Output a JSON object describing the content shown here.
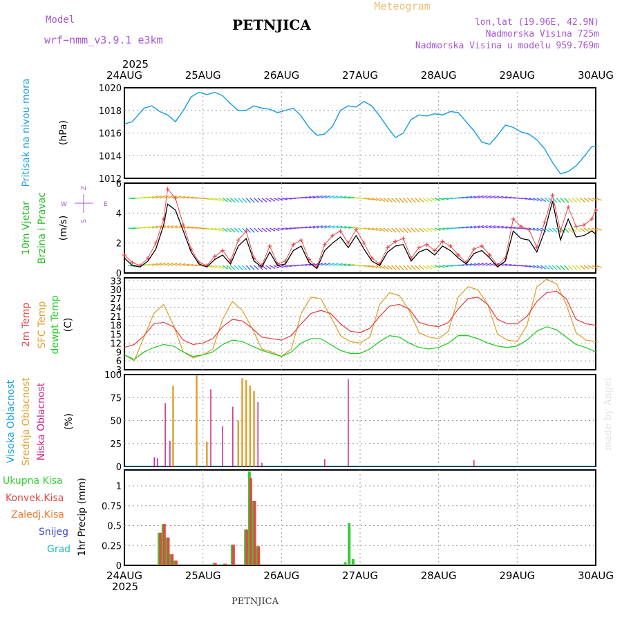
{
  "header": {
    "model_label": "Model",
    "model_name": "wrf−nmm_v3.9.1  e3km",
    "station": "PETNJICA",
    "meteogram": "Meteogram",
    "coords": "lon,lat (19.96E, 42.9N)",
    "altitude": "Nadmorska Visina 725m",
    "model_altitude": "Nadmorska Visina u modelu 959.769m",
    "footer_station": "PETNJICA",
    "credit": "made by Angel"
  },
  "colors": {
    "pressure": "#1ea0e6",
    "wind_label": "#22bb22",
    "temp2m": "#e84646",
    "sfc": "#e0a030",
    "dewpt": "#22cc22",
    "cloud_high": "#1ea0e6",
    "cloud_mid": "#e0a030",
    "cloud_low": "#cc2288",
    "precip_total": "#33cc33",
    "precip_conv": "#e84646",
    "precip_snow": "#4444dd",
    "precip_hail": "#22bbbb",
    "precip_frz": "#f07a30",
    "purple": "#a855d8"
  },
  "chart_data": {
    "type": "line",
    "x_axis": {
      "year": "2025",
      "dates": [
        "24AUG",
        "25AUG",
        "26AUG",
        "27AUG",
        "28AUG",
        "29AUG",
        "30AUG"
      ],
      "range_days": [
        0,
        6
      ]
    },
    "panels": {
      "pressure": {
        "ylabel": "Pritisak na nivou mora",
        "unit": "(hPa)",
        "ylim": [
          1012,
          1020
        ],
        "yticks": [
          "1012",
          "1014",
          "1016",
          "1018",
          "1020"
        ],
        "x": [
          0,
          0.1,
          0.25,
          0.35,
          0.45,
          0.55,
          0.65,
          0.75,
          0.85,
          0.95,
          1.05,
          1.15,
          1.25,
          1.35,
          1.45,
          1.55,
          1.65,
          1.75,
          1.85,
          1.95,
          2.05,
          2.15,
          2.25,
          2.35,
          2.45,
          2.55,
          2.65,
          2.75,
          2.85,
          2.95,
          3.05,
          3.15,
          3.25,
          3.35,
          3.45,
          3.55,
          3.65,
          3.75,
          3.85,
          3.95,
          4.05,
          4.15,
          4.25,
          4.35,
          4.45,
          4.55,
          4.65,
          4.75,
          4.85,
          4.95,
          5.05,
          5.15,
          5.25,
          5.35,
          5.45,
          5.55,
          5.65,
          5.75,
          5.85,
          5.95,
          6.0
        ],
        "values": [
          1016.8,
          1017.0,
          1018.2,
          1018.4,
          1017.9,
          1017.6,
          1017.0,
          1018.0,
          1019.2,
          1019.6,
          1019.4,
          1019.6,
          1019.3,
          1018.6,
          1018.0,
          1018.0,
          1018.4,
          1018.2,
          1018.1,
          1017.8,
          1018.0,
          1018.2,
          1017.5,
          1016.5,
          1015.8,
          1015.9,
          1016.6,
          1018.0,
          1018.4,
          1018.3,
          1018.8,
          1018.4,
          1017.5,
          1016.5,
          1015.6,
          1016.0,
          1017.2,
          1017.6,
          1017.5,
          1017.7,
          1017.6,
          1017.9,
          1017.8,
          1017.0,
          1016.2,
          1015.2,
          1015.0,
          1015.8,
          1016.7,
          1016.5,
          1016.1,
          1015.9,
          1015.4,
          1014.6,
          1013.4,
          1012.4,
          1012.6,
          1013.1,
          1013.9,
          1014.8,
          1014.8
        ]
      },
      "wind": {
        "ylabel1": "10m Vjetar",
        "ylabel2": "Brzina i Pravac",
        "unit": "(m/s)",
        "ylim": [
          0,
          6
        ],
        "yticks": [
          "0",
          "2",
          "4",
          "6"
        ],
        "compass": {
          "n": "Z",
          "s": "S",
          "w": "W",
          "e": "E"
        },
        "barb_levels": [
          5,
          3,
          0.5
        ],
        "x": [
          0,
          0.1,
          0.2,
          0.3,
          0.4,
          0.5,
          0.55,
          0.65,
          0.75,
          0.85,
          0.95,
          1.05,
          1.15,
          1.25,
          1.35,
          1.45,
          1.55,
          1.65,
          1.75,
          1.85,
          1.95,
          2.05,
          2.15,
          2.25,
          2.35,
          2.45,
          2.55,
          2.65,
          2.75,
          2.85,
          2.95,
          3.05,
          3.15,
          3.25,
          3.35,
          3.45,
          3.55,
          3.65,
          3.75,
          3.85,
          3.95,
          4.05,
          4.15,
          4.25,
          4.35,
          4.45,
          4.55,
          4.65,
          4.75,
          4.85,
          4.95,
          5.05,
          5.15,
          5.25,
          5.35,
          5.45,
          5.55,
          5.65,
          5.75,
          5.85,
          5.95,
          6.0
        ],
        "speed": [
          1.0,
          0.5,
          0.4,
          0.8,
          1.6,
          3.2,
          4.6,
          4.2,
          2.8,
          1.4,
          0.6,
          0.4,
          0.9,
          1.2,
          0.6,
          1.8,
          2.3,
          0.8,
          0.4,
          1.4,
          0.5,
          0.6,
          1.5,
          1.8,
          0.7,
          0.3,
          1.5,
          2.0,
          2.4,
          1.7,
          2.5,
          1.6,
          0.8,
          0.5,
          1.4,
          1.8,
          1.9,
          0.8,
          1.4,
          1.6,
          1.2,
          1.8,
          1.5,
          1.0,
          0.6,
          1.3,
          1.5,
          1.0,
          0.4,
          0.8,
          2.8,
          2.3,
          2.2,
          1.4,
          2.8,
          4.8,
          2.2,
          3.6,
          2.4,
          2.5,
          2.8,
          2.6
        ],
        "gust": [
          1.2,
          0.7,
          0.5,
          1.0,
          2.0,
          3.6,
          5.6,
          5.0,
          3.2,
          1.6,
          0.7,
          0.5,
          1.1,
          1.5,
          0.8,
          2.2,
          2.8,
          1.0,
          0.5,
          1.8,
          0.6,
          0.8,
          1.9,
          2.2,
          0.9,
          0.4,
          1.9,
          2.5,
          2.8,
          2.0,
          2.9,
          2.0,
          1.0,
          0.6,
          1.7,
          2.1,
          2.3,
          1.0,
          1.7,
          1.9,
          1.5,
          2.1,
          1.8,
          1.2,
          0.7,
          1.6,
          1.8,
          1.2,
          0.5,
          1.0,
          3.6,
          3.1,
          2.9,
          1.7,
          3.4,
          5.2,
          2.8,
          4.4,
          3.1,
          3.2,
          3.6,
          4.2
        ]
      },
      "temperature": {
        "ylabel1": "2m Temp",
        "ylabel2": "SFC Temp",
        "ylabel3": "dewpt Temp",
        "unit": "(C)",
        "ylim": [
          3,
          34
        ],
        "yticks": [
          "3",
          "6",
          "9",
          "12",
          "15",
          "18",
          "21",
          "24",
          "27",
          "30",
          "33"
        ],
        "x": [
          0,
          0.125,
          0.25,
          0.375,
          0.5,
          0.625,
          0.75,
          0.875,
          1.0,
          1.125,
          1.25,
          1.375,
          1.5,
          1.625,
          1.75,
          1.875,
          2.0,
          2.125,
          2.25,
          2.375,
          2.5,
          2.625,
          2.75,
          2.875,
          3.0,
          3.125,
          3.25,
          3.375,
          3.5,
          3.625,
          3.75,
          3.875,
          4.0,
          4.125,
          4.25,
          4.375,
          4.5,
          4.625,
          4.75,
          4.875,
          5.0,
          5.125,
          5.25,
          5.375,
          5.5,
          5.625,
          5.75,
          5.875,
          6.0
        ],
        "t2m": [
          10.5,
          11.5,
          14.5,
          18.5,
          19.0,
          17.5,
          13.0,
          11.5,
          12.0,
          13.5,
          17.5,
          20.0,
          19.5,
          17.0,
          14.0,
          13.5,
          13.0,
          14.5,
          18.5,
          22.0,
          23.0,
          22.0,
          18.5,
          16.0,
          15.5,
          17.0,
          21.0,
          24.5,
          25.0,
          23.5,
          19.0,
          18.0,
          17.5,
          19.0,
          23.5,
          27.0,
          27.5,
          25.0,
          20.0,
          18.5,
          18.5,
          21.0,
          26.0,
          29.0,
          29.5,
          27.0,
          20.0,
          18.5,
          18.0
        ],
        "sfc": [
          8.0,
          6.0,
          14.0,
          22.0,
          25.0,
          18.0,
          9.0,
          7.0,
          8.0,
          10.0,
          20.0,
          26.0,
          23.0,
          17.0,
          10.0,
          9.0,
          7.5,
          10.0,
          22.0,
          27.5,
          27.0,
          21.0,
          14.5,
          12.5,
          12.0,
          14.0,
          25.0,
          29.0,
          28.0,
          23.0,
          15.5,
          14.0,
          13.5,
          16.0,
          27.5,
          31.0,
          30.0,
          25.0,
          15.0,
          13.0,
          12.5,
          18.0,
          31.0,
          33.5,
          32.0,
          25.0,
          15.5,
          13.0,
          12.5
        ],
        "dewpt": [
          8.0,
          6.5,
          9.0,
          10.5,
          11.5,
          11.0,
          9.0,
          7.5,
          8.0,
          9.0,
          11.5,
          13.0,
          12.5,
          11.0,
          9.5,
          8.5,
          7.5,
          9.0,
          12.0,
          13.5,
          13.5,
          11.5,
          9.5,
          8.5,
          8.5,
          10.0,
          12.5,
          14.5,
          14.0,
          12.0,
          10.5,
          10.0,
          10.5,
          12.0,
          14.5,
          14.5,
          13.5,
          12.0,
          11.0,
          10.5,
          11.0,
          13.0,
          16.0,
          17.5,
          16.5,
          14.0,
          11.5,
          10.5,
          9.0
        ]
      },
      "clouds": {
        "ylabel1": "Visoka Oblacnost",
        "ylabel2": "Srednja Oblacnost",
        "ylabel3": "Niska Oblacnost",
        "unit": "(%)",
        "ylim": [
          0,
          100
        ],
        "yticks": [
          "0",
          "25",
          "50",
          "75",
          "100"
        ],
        "bars": [
          {
            "x": 0.38,
            "kind": "low",
            "v": 10
          },
          {
            "x": 0.42,
            "kind": "low",
            "v": 9
          },
          {
            "x": 0.52,
            "kind": "low",
            "v": 69
          },
          {
            "x": 0.58,
            "kind": "low",
            "v": 28
          },
          {
            "x": 0.62,
            "kind": "mid",
            "v": 88
          },
          {
            "x": 0.92,
            "kind": "mid",
            "v": 99
          },
          {
            "x": 1.05,
            "kind": "mid",
            "v": 27
          },
          {
            "x": 1.1,
            "kind": "low",
            "v": 84
          },
          {
            "x": 1.25,
            "kind": "low",
            "v": 44
          },
          {
            "x": 1.38,
            "kind": "low",
            "v": 65
          },
          {
            "x": 1.45,
            "kind": "mid",
            "v": 50
          },
          {
            "x": 1.5,
            "kind": "mid",
            "v": 96
          },
          {
            "x": 1.55,
            "kind": "mid",
            "v": 94
          },
          {
            "x": 1.6,
            "kind": "mid",
            "v": 88
          },
          {
            "x": 1.65,
            "kind": "mid",
            "v": 82
          },
          {
            "x": 1.7,
            "kind": "low",
            "v": 70
          },
          {
            "x": 1.75,
            "kind": "low",
            "v": 4
          },
          {
            "x": 2.55,
            "kind": "low",
            "v": 8
          },
          {
            "x": 2.85,
            "kind": "low",
            "v": 95
          },
          {
            "x": 4.45,
            "kind": "low",
            "v": 7
          }
        ]
      },
      "precip": {
        "labels": [
          "Ukupna Kisa",
          "Konvek.Kisa",
          "Zaledj.Kisa",
          "Snijeg",
          "Grad"
        ],
        "ylabel": "1hr Precip (mm)",
        "ylim": [
          0,
          1.2
        ],
        "yticks": [
          "0",
          "0.25",
          "0.5",
          "0.75",
          "1"
        ],
        "bars": [
          {
            "x": 0.45,
            "total": 0.41,
            "conv": 0.41
          },
          {
            "x": 0.5,
            "total": 0.52,
            "conv": 0.52
          },
          {
            "x": 0.55,
            "total": 0.35,
            "conv": 0.35
          },
          {
            "x": 0.6,
            "total": 0.14,
            "conv": 0.14
          },
          {
            "x": 0.65,
            "total": 0.06,
            "conv": 0.06
          },
          {
            "x": 1.15,
            "total": 0.03,
            "conv": 0.03
          },
          {
            "x": 1.28,
            "total": 0.02,
            "conv": 0.02
          },
          {
            "x": 1.38,
            "total": 0.26,
            "conv": 0.26
          },
          {
            "x": 1.55,
            "total": 0.45,
            "conv": 0.45
          },
          {
            "x": 1.6,
            "total": 1.18,
            "conv": 1.1
          },
          {
            "x": 1.65,
            "total": 0.81,
            "conv": 0.81
          },
          {
            "x": 1.7,
            "total": 0.24,
            "conv": 0.24
          },
          {
            "x": 2.82,
            "total": 0.04,
            "conv": 0.0
          },
          {
            "x": 2.87,
            "total": 0.53,
            "conv": 0.0
          },
          {
            "x": 2.92,
            "total": 0.08,
            "conv": 0.0
          }
        ]
      }
    }
  }
}
